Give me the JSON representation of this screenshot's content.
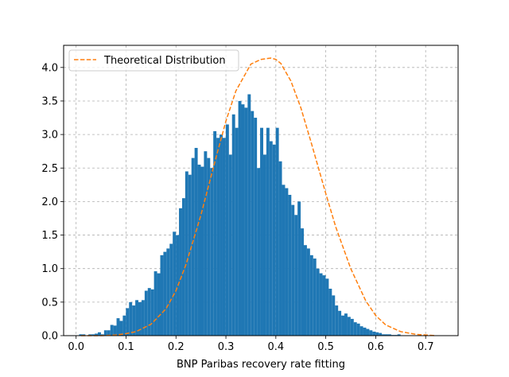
{
  "chart_data": {
    "type": "bar",
    "title": "",
    "xlabel": "BNP Paribas recovery rate fitting",
    "ylabel": "",
    "xlim": [
      -0.025,
      0.765
    ],
    "ylim": [
      0,
      4.33
    ],
    "grid": true,
    "grid_style": "dashed",
    "legend_position": "top-left",
    "xticks": [
      "0.0",
      "0.1",
      "0.2",
      "0.3",
      "0.4",
      "0.5",
      "0.6",
      "0.7"
    ],
    "xtick_values": [
      0.0,
      0.1,
      0.2,
      0.3,
      0.4,
      0.5,
      0.6,
      0.7
    ],
    "yticks": [
      "0.0",
      "0.5",
      "1.0",
      "1.5",
      "2.0",
      "2.5",
      "3.0",
      "3.5",
      "4.0"
    ],
    "ytick_values": [
      0.0,
      0.5,
      1.0,
      1.5,
      2.0,
      2.5,
      3.0,
      3.5,
      4.0
    ],
    "histogram": {
      "name": "",
      "color": "#1f77b4",
      "bin_width": 0.00625,
      "bins_start": 0.006,
      "values": [
        0.02,
        0.02,
        0.0,
        0.02,
        0.02,
        0.03,
        0.05,
        0.02,
        0.08,
        0.08,
        0.16,
        0.15,
        0.26,
        0.22,
        0.3,
        0.41,
        0.5,
        0.45,
        0.53,
        0.5,
        0.53,
        0.67,
        0.71,
        0.69,
        0.96,
        0.93,
        1.2,
        1.25,
        1.3,
        1.37,
        1.55,
        1.5,
        1.9,
        2.05,
        2.45,
        2.4,
        2.65,
        2.8,
        2.55,
        2.52,
        2.75,
        2.65,
        2.5,
        3.05,
        2.95,
        3.0,
        2.95,
        3.15,
        2.7,
        3.3,
        3.1,
        3.5,
        3.45,
        3.4,
        3.6,
        3.35,
        3.25,
        2.5,
        3.1,
        2.7,
        3.1,
        2.9,
        2.85,
        3.1,
        2.6,
        2.25,
        2.2,
        2.1,
        1.95,
        1.8,
        2.0,
        1.6,
        1.35,
        1.3,
        1.2,
        1.15,
        1.0,
        0.93,
        0.9,
        0.85,
        0.7,
        0.6,
        0.45,
        0.37,
        0.3,
        0.33,
        0.28,
        0.25,
        0.2,
        0.18,
        0.14,
        0.12,
        0.1,
        0.08,
        0.06,
        0.05,
        0.04,
        0.02,
        0.02,
        0.02,
        0.01,
        0.01,
        0.02
      ]
    },
    "series": [
      {
        "name": "Theoretical Distribution",
        "type": "line",
        "style": "dashed",
        "color": "#ff7f0e",
        "x": [
          0.01,
          0.05,
          0.08,
          0.1,
          0.12,
          0.15,
          0.18,
          0.2,
          0.22,
          0.25,
          0.28,
          0.3,
          0.32,
          0.35,
          0.37,
          0.39,
          0.4,
          0.41,
          0.43,
          0.45,
          0.47,
          0.5,
          0.52,
          0.55,
          0.58,
          0.6,
          0.62,
          0.65,
          0.68,
          0.7,
          0.72
        ],
        "y": [
          0.0,
          0.0,
          0.01,
          0.03,
          0.06,
          0.17,
          0.4,
          0.67,
          1.06,
          1.8,
          2.65,
          3.2,
          3.65,
          4.05,
          4.12,
          4.14,
          4.12,
          4.06,
          3.8,
          3.4,
          2.9,
          2.12,
          1.62,
          1.0,
          0.52,
          0.3,
          0.16,
          0.06,
          0.02,
          0.01,
          0.0
        ]
      }
    ]
  }
}
